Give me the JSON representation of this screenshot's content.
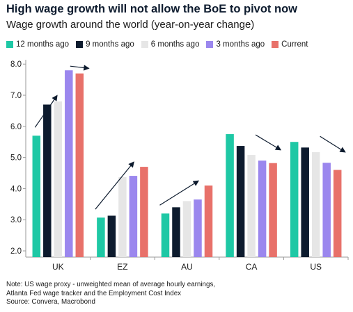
{
  "header": {
    "title": "High wage growth will not allow the BoE to pivot now",
    "subtitle": "Wage growth around the world (year-on-year change)"
  },
  "footnotes": {
    "note_line1": "Note: US wage proxy - unweighted mean of average hourly earnings,",
    "note_line2": "Atlanta Fed wage tracker and the Employment Cost Index",
    "source": "Source: Convera, Macrobond"
  },
  "chart_data": {
    "type": "bar",
    "categories": [
      "UK",
      "EZ",
      "AU",
      "CA",
      "US"
    ],
    "series": [
      {
        "name": "12 months ago",
        "color": "#1ec8a5",
        "values": [
          5.7,
          3.07,
          3.2,
          5.75,
          5.5
        ]
      },
      {
        "name": "9 months ago",
        "color": "#0d1b2e",
        "values": [
          6.7,
          3.13,
          3.4,
          5.37,
          5.32
        ]
      },
      {
        "name": "6 months ago",
        "color": "#e6e6e6",
        "values": [
          6.8,
          4.37,
          3.6,
          5.08,
          5.17
        ]
      },
      {
        "name": "3 months ago",
        "color": "#9b87ee",
        "values": [
          7.8,
          4.41,
          3.65,
          4.9,
          4.83
        ]
      },
      {
        "name": "Current",
        "color": "#e8716a",
        "values": [
          7.7,
          4.7,
          4.1,
          4.82,
          4.6
        ]
      }
    ],
    "yticks": [
      "2.0",
      "3.0",
      "4.0",
      "5.0",
      "6.0",
      "7.0",
      "8.0"
    ],
    "ylim": [
      1.8,
      8.05
    ],
    "grid": false,
    "legend": "top-left",
    "trend_arrows": [
      "up",
      "up",
      "up",
      "down",
      "down"
    ]
  }
}
